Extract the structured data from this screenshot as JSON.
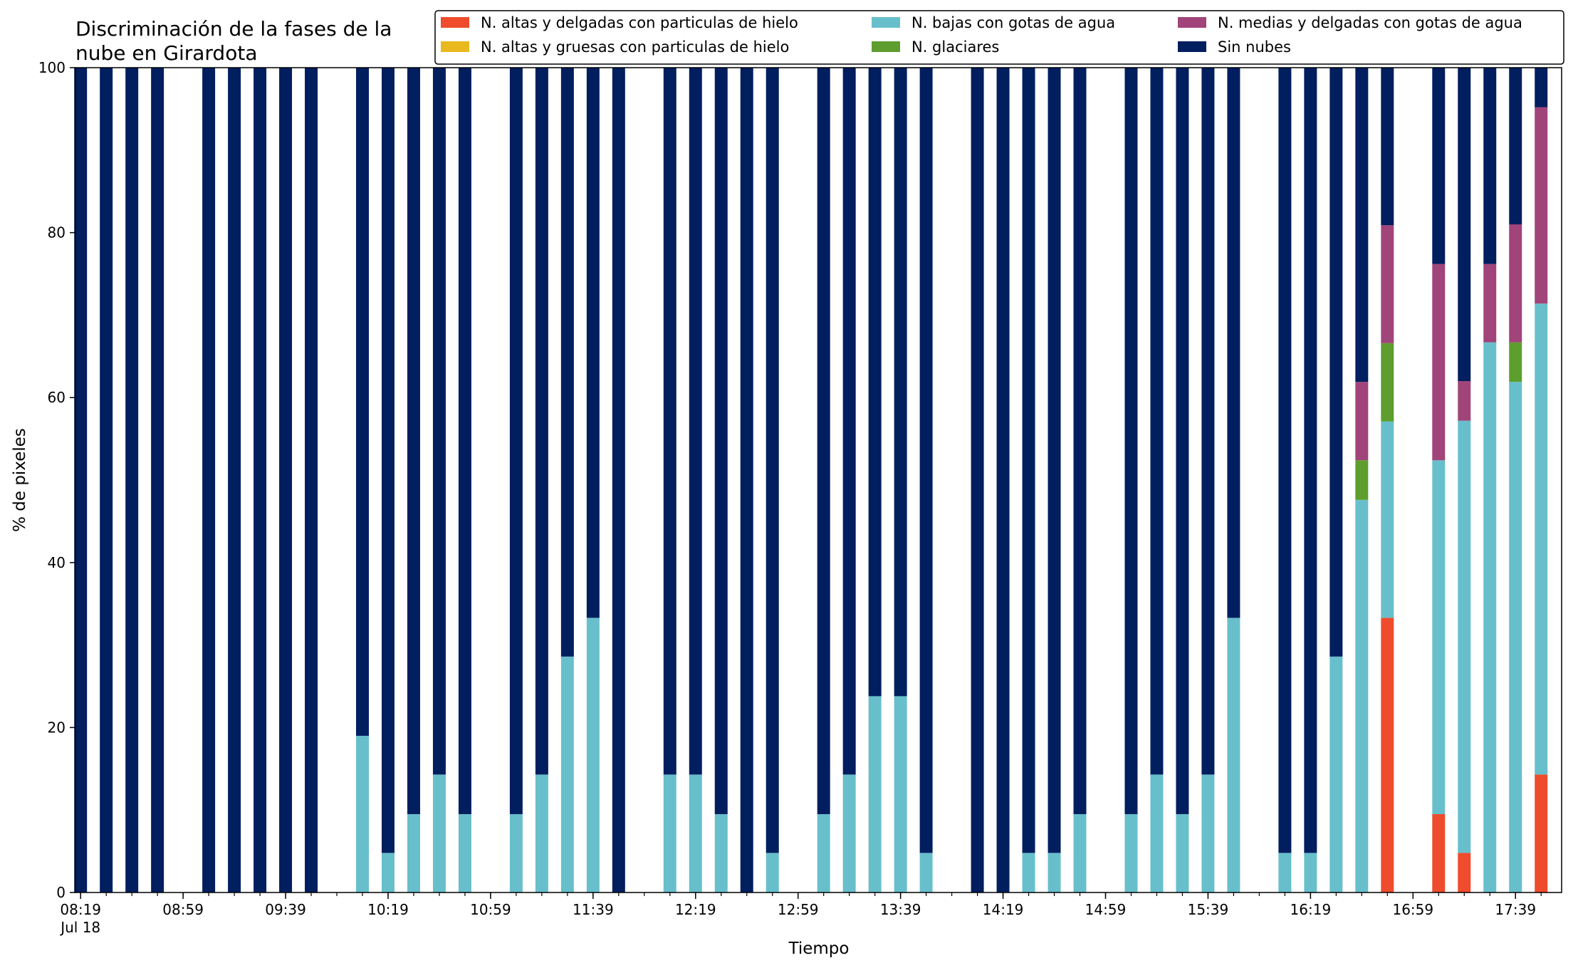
{
  "colors": {
    "ice_thin": "#ee4c2c",
    "ice_thick": "#e8b81e",
    "water_low": "#68bfcc",
    "glacier": "#5d9e2e",
    "water_mid": "#a1447a",
    "clear": "#011e5f"
  },
  "chart_data": {
    "type": "bar",
    "stacked": true,
    "title": "Discriminación de la fases de la nube en Girardota",
    "title_lines": [
      "Discriminación de la fases de la",
      "nube en Girardota"
    ],
    "xlabel": "Tiempo",
    "ylabel": "% de pixeles",
    "ylim": [
      0,
      100
    ],
    "yticks": [
      "0",
      "20",
      "40",
      "60",
      "80",
      "100"
    ],
    "xlim_minutes": [
      497,
      1077
    ],
    "bar_width_minutes": 5,
    "xtick_labels": [
      "08:19",
      "08:59",
      "09:39",
      "10:19",
      "10:59",
      "11:39",
      "12:19",
      "12:59",
      "13:39",
      "14:19",
      "14:59",
      "15:39",
      "16:19",
      "16:59",
      "17:39"
    ],
    "xtick_date": "Jul 18",
    "grid": false,
    "legend_position": "top-right",
    "legend_columns": 3,
    "series_order": [
      "ice_thin",
      "ice_thick",
      "water_low",
      "glacier",
      "water_mid",
      "clear"
    ],
    "series_names": {
      "ice_thin": "N. altas y delgadas con particulas de hielo",
      "ice_thick": "N. altas y gruesas con particulas de hielo",
      "water_low": "N. bajas con gotas de agua",
      "glacier": "N. glaciares",
      "water_mid": "N. medias y delgadas con gotas de agua",
      "clear": "Sin nubes"
    },
    "legend": [
      [
        "ice_thin",
        "water_low",
        "water_mid"
      ],
      [
        "ice_thick",
        "glacier",
        "clear"
      ]
    ],
    "bars": [
      {
        "t": "08:19",
        "ice_thin": 0,
        "water_low": 0,
        "glacier": 0,
        "water_mid": 0,
        "clear": 100
      },
      {
        "t": "08:29",
        "ice_thin": 0,
        "water_low": 0,
        "glacier": 0,
        "water_mid": 0,
        "clear": 100
      },
      {
        "t": "08:39",
        "ice_thin": 0,
        "water_low": 0,
        "glacier": 0,
        "water_mid": 0,
        "clear": 100
      },
      {
        "t": "08:49",
        "ice_thin": 0,
        "water_low": 0,
        "glacier": 0,
        "water_mid": 0,
        "clear": 100
      },
      {
        "t": "09:09",
        "ice_thin": 0,
        "water_low": 0,
        "glacier": 0,
        "water_mid": 0,
        "clear": 100
      },
      {
        "t": "09:19",
        "ice_thin": 0,
        "water_low": 0,
        "glacier": 0,
        "water_mid": 0,
        "clear": 100
      },
      {
        "t": "09:29",
        "ice_thin": 0,
        "water_low": 0,
        "glacier": 0,
        "water_mid": 0,
        "clear": 100
      },
      {
        "t": "09:39",
        "ice_thin": 0,
        "water_low": 0,
        "glacier": 0,
        "water_mid": 0,
        "clear": 100
      },
      {
        "t": "09:49",
        "ice_thin": 0,
        "water_low": 0,
        "glacier": 0,
        "water_mid": 0,
        "clear": 100
      },
      {
        "t": "10:09",
        "ice_thin": 0,
        "water_low": 19,
        "glacier": 0,
        "water_mid": 0,
        "clear": 81
      },
      {
        "t": "10:19",
        "ice_thin": 0,
        "water_low": 4.8,
        "glacier": 0,
        "water_mid": 0,
        "clear": 95.2
      },
      {
        "t": "10:29",
        "ice_thin": 0,
        "water_low": 9.5,
        "glacier": 0,
        "water_mid": 0,
        "clear": 90.5
      },
      {
        "t": "10:39",
        "ice_thin": 0,
        "water_low": 14.3,
        "glacier": 0,
        "water_mid": 0,
        "clear": 85.7
      },
      {
        "t": "10:49",
        "ice_thin": 0,
        "water_low": 9.5,
        "glacier": 0,
        "water_mid": 0,
        "clear": 90.5
      },
      {
        "t": "11:09",
        "ice_thin": 0,
        "water_low": 9.5,
        "glacier": 0,
        "water_mid": 0,
        "clear": 90.5
      },
      {
        "t": "11:19",
        "ice_thin": 0,
        "water_low": 14.3,
        "glacier": 0,
        "water_mid": 0,
        "clear": 85.7
      },
      {
        "t": "11:29",
        "ice_thin": 0,
        "water_low": 28.6,
        "glacier": 0,
        "water_mid": 0,
        "clear": 71.4
      },
      {
        "t": "11:39",
        "ice_thin": 0,
        "water_low": 33.3,
        "glacier": 0,
        "water_mid": 0,
        "clear": 66.7
      },
      {
        "t": "11:49",
        "ice_thin": 0,
        "water_low": 0,
        "glacier": 0,
        "water_mid": 0,
        "clear": 100
      },
      {
        "t": "12:09",
        "ice_thin": 0,
        "water_low": 14.3,
        "glacier": 0,
        "water_mid": 0,
        "clear": 85.7
      },
      {
        "t": "12:19",
        "ice_thin": 0,
        "water_low": 14.3,
        "glacier": 0,
        "water_mid": 0,
        "clear": 85.7
      },
      {
        "t": "12:29",
        "ice_thin": 0,
        "water_low": 9.5,
        "glacier": 0,
        "water_mid": 0,
        "clear": 90.5
      },
      {
        "t": "12:39",
        "ice_thin": 0,
        "water_low": 0,
        "glacier": 0,
        "water_mid": 0,
        "clear": 100
      },
      {
        "t": "12:49",
        "ice_thin": 0,
        "water_low": 4.8,
        "glacier": 0,
        "water_mid": 0,
        "clear": 95.2
      },
      {
        "t": "13:09",
        "ice_thin": 0,
        "water_low": 9.5,
        "glacier": 0,
        "water_mid": 0,
        "clear": 90.5
      },
      {
        "t": "13:19",
        "ice_thin": 0,
        "water_low": 14.3,
        "glacier": 0,
        "water_mid": 0,
        "clear": 85.7
      },
      {
        "t": "13:29",
        "ice_thin": 0,
        "water_low": 23.8,
        "glacier": 0,
        "water_mid": 0,
        "clear": 76.2
      },
      {
        "t": "13:39",
        "ice_thin": 0,
        "water_low": 23.8,
        "glacier": 0,
        "water_mid": 0,
        "clear": 76.2
      },
      {
        "t": "13:49",
        "ice_thin": 0,
        "water_low": 4.8,
        "glacier": 0,
        "water_mid": 0,
        "clear": 95.2
      },
      {
        "t": "14:09",
        "ice_thin": 0,
        "water_low": 0,
        "glacier": 0,
        "water_mid": 0,
        "clear": 100
      },
      {
        "t": "14:19",
        "ice_thin": 0,
        "water_low": 0,
        "glacier": 0,
        "water_mid": 0,
        "clear": 100
      },
      {
        "t": "14:29",
        "ice_thin": 0,
        "water_low": 4.8,
        "glacier": 0,
        "water_mid": 0,
        "clear": 95.2
      },
      {
        "t": "14:39",
        "ice_thin": 0,
        "water_low": 4.8,
        "glacier": 0,
        "water_mid": 0,
        "clear": 95.2
      },
      {
        "t": "14:49",
        "ice_thin": 0,
        "water_low": 9.5,
        "glacier": 0,
        "water_mid": 0,
        "clear": 90.5
      },
      {
        "t": "15:09",
        "ice_thin": 0,
        "water_low": 9.5,
        "glacier": 0,
        "water_mid": 0,
        "clear": 90.5
      },
      {
        "t": "15:19",
        "ice_thin": 0,
        "water_low": 14.3,
        "glacier": 0,
        "water_mid": 0,
        "clear": 85.7
      },
      {
        "t": "15:29",
        "ice_thin": 0,
        "water_low": 9.5,
        "glacier": 0,
        "water_mid": 0,
        "clear": 90.5
      },
      {
        "t": "15:39",
        "ice_thin": 0,
        "water_low": 14.3,
        "glacier": 0,
        "water_mid": 0,
        "clear": 85.7
      },
      {
        "t": "15:49",
        "ice_thin": 0,
        "water_low": 33.3,
        "glacier": 0,
        "water_mid": 0,
        "clear": 66.7
      },
      {
        "t": "16:09",
        "ice_thin": 0,
        "water_low": 4.8,
        "glacier": 0,
        "water_mid": 0,
        "clear": 95.2
      },
      {
        "t": "16:19",
        "ice_thin": 0,
        "water_low": 4.8,
        "glacier": 0,
        "water_mid": 0,
        "clear": 95.2
      },
      {
        "t": "16:29",
        "ice_thin": 0,
        "water_low": 28.6,
        "glacier": 0,
        "water_mid": 0,
        "clear": 71.4
      },
      {
        "t": "16:39",
        "ice_thin": 0,
        "water_low": 47.6,
        "glacier": 4.8,
        "water_mid": 9.5,
        "clear": 38.1
      },
      {
        "t": "16:49",
        "ice_thin": 33.3,
        "water_low": 23.8,
        "glacier": 9.5,
        "water_mid": 14.3,
        "clear": 19.1
      },
      {
        "t": "17:09",
        "ice_thin": 9.5,
        "water_low": 42.9,
        "glacier": 0,
        "water_mid": 23.8,
        "clear": 23.8
      },
      {
        "t": "17:19",
        "ice_thin": 4.8,
        "water_low": 52.4,
        "glacier": 0,
        "water_mid": 4.8,
        "clear": 38
      },
      {
        "t": "17:29",
        "ice_thin": 0,
        "water_low": 66.7,
        "glacier": 0,
        "water_mid": 9.5,
        "clear": 23.8
      },
      {
        "t": "17:39",
        "ice_thin": 0,
        "water_low": 61.9,
        "glacier": 4.8,
        "water_mid": 14.3,
        "clear": 19
      },
      {
        "t": "17:49",
        "ice_thin": 14.3,
        "water_low": 57.1,
        "glacier": 0,
        "water_mid": 23.8,
        "clear": 4.8
      }
    ]
  }
}
